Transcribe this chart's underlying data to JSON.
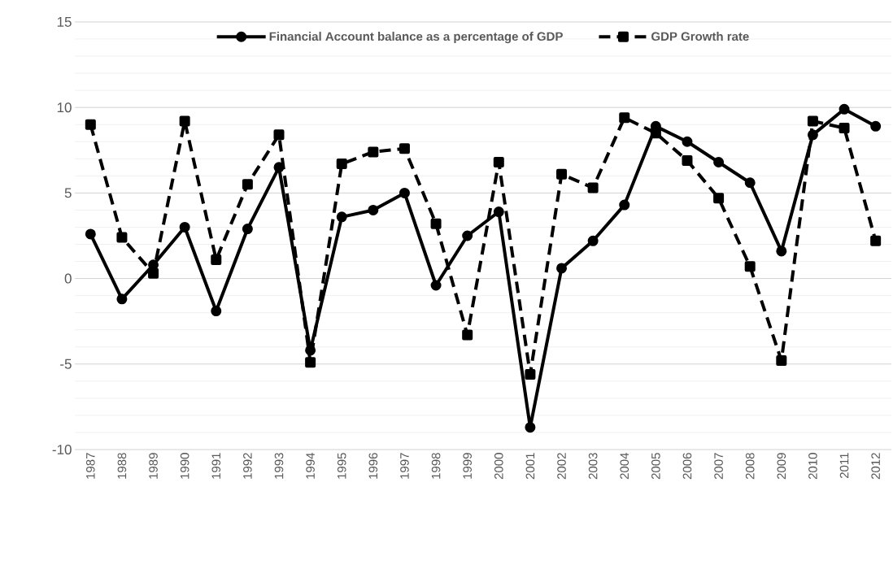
{
  "chart_data": {
    "type": "line",
    "categories": [
      "1987",
      "1988",
      "1989",
      "1990",
      "1991",
      "1992",
      "1993",
      "1994",
      "1995",
      "1996",
      "1997",
      "1998",
      "1999",
      "2000",
      "2001",
      "2002",
      "2003",
      "2004",
      "2005",
      "2006",
      "2007",
      "2008",
      "2009",
      "2010",
      "2011",
      "2012"
    ],
    "series": [
      {
        "name": "Financial Account balance as a percentage of GDP",
        "color": "#000000",
        "marker": "circle",
        "line_style": "solid",
        "values": [
          2.6,
          -1.2,
          0.8,
          3.0,
          -1.9,
          2.9,
          6.5,
          -4.2,
          3.6,
          4.0,
          5.0,
          -0.4,
          2.5,
          3.9,
          -8.7,
          0.6,
          2.2,
          4.3,
          8.9,
          8.0,
          6.8,
          5.6,
          1.6,
          8.4,
          9.9,
          8.9
        ]
      },
      {
        "name": "GDP Growth rate",
        "color": "#000000",
        "marker": "square",
        "line_style": "dashed",
        "values": [
          9.0,
          2.4,
          0.3,
          9.2,
          1.1,
          5.5,
          8.4,
          -4.9,
          6.7,
          7.4,
          7.6,
          3.2,
          -3.3,
          6.8,
          -5.6,
          6.1,
          5.3,
          9.4,
          8.5,
          6.9,
          4.7,
          0.7,
          -4.8,
          9.2,
          8.8,
          2.2
        ]
      }
    ],
    "ylim": [
      -10,
      15
    ],
    "yticks": [
      -10,
      {
        "value": -9,
        "label": null
      },
      {
        "value": -8,
        "label": null
      },
      {
        "value": -7,
        "label": null
      },
      {
        "value": -6,
        "label": null
      },
      -5,
      {
        "value": -4,
        "label": null
      },
      {
        "value": -3,
        "label": null
      },
      {
        "value": -2,
        "label": null
      },
      {
        "value": -1,
        "label": null
      },
      0,
      {
        "value": 1,
        "label": null
      },
      {
        "value": 2,
        "label": null
      },
      {
        "value": 3,
        "label": null
      },
      {
        "value": 4,
        "label": null
      },
      5,
      {
        "value": 6,
        "label": null
      },
      {
        "value": 7,
        "label": null
      },
      {
        "value": 8,
        "label": null
      },
      {
        "value": 9,
        "label": null
      },
      10,
      {
        "value": 11,
        "label": null
      },
      {
        "value": 12,
        "label": null
      },
      {
        "value": 13,
        "label": null
      },
      {
        "value": 14,
        "label": null
      },
      15
    ],
    "grid": "y",
    "legend": "top"
  }
}
